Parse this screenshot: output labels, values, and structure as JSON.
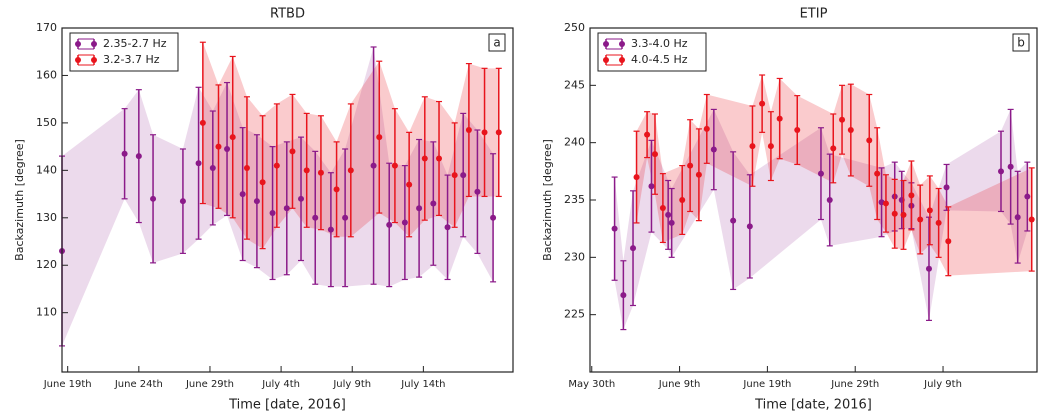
{
  "chart_data": [
    {
      "type": "errorbar",
      "title": "RTBD",
      "panel_label": "a",
      "x_label": "Time [date, 2016]",
      "y_label": "Backazimuth [degree]",
      "xlim": [
        18.6,
        50.3
      ],
      "ylim": [
        97.5,
        170
      ],
      "xticks": [
        {
          "value": 19,
          "label": "June 19th"
        },
        {
          "value": 24,
          "label": "June 24th"
        },
        {
          "value": 29,
          "label": "June 29th"
        },
        {
          "value": 34,
          "label": "July 4th"
        },
        {
          "value": 39,
          "label": "July 9th"
        },
        {
          "value": 44,
          "label": "July 14th"
        }
      ],
      "yticks": [
        110,
        120,
        130,
        140,
        150,
        160,
        170
      ],
      "legend": "upper left",
      "series": [
        {
          "name": "2.35-2.7 Hz",
          "color": "#8b1a89",
          "x": [
            18.6,
            23,
            24,
            25,
            27.1,
            28.2,
            29.2,
            30.2,
            31.3,
            32.3,
            33.4,
            34.4,
            35.4,
            36.4,
            37.5,
            38.5,
            40.5,
            41.6,
            42.7,
            43.7,
            44.7,
            45.7,
            46.8,
            47.8,
            48.9
          ],
          "values": [
            123,
            143.5,
            143,
            134,
            133.5,
            141.5,
            140.5,
            144.5,
            135,
            133.5,
            131,
            132,
            134,
            130,
            127.5,
            130,
            141,
            128.5,
            129,
            132,
            133,
            128,
            139,
            135.5,
            130
          ],
          "errors": [
            20,
            9.5,
            14,
            13.5,
            11,
            16,
            12,
            14,
            14,
            14,
            14,
            14,
            13,
            14,
            12,
            14.5,
            25,
            13,
            12,
            14.5,
            13,
            11,
            13,
            13,
            13.5
          ]
        },
        {
          "name": "3.2-3.7 Hz",
          "color": "#e8141c",
          "x": [
            28.5,
            29.6,
            30.6,
            31.6,
            32.7,
            33.7,
            34.8,
            35.8,
            36.8,
            37.9,
            38.9,
            40.9,
            42,
            43,
            44.1,
            45.1,
            46.2,
            47.2,
            48.3,
            49.3
          ],
          "values": [
            150,
            145,
            147,
            140.5,
            137.5,
            141,
            144,
            140,
            139.5,
            136,
            140,
            147,
            141,
            137,
            142.5,
            142.5,
            139,
            148.5,
            148,
            148
          ],
          "errors": [
            17,
            13,
            17,
            15,
            14,
            13,
            12,
            12,
            12,
            10,
            14,
            16,
            12,
            11,
            13,
            12,
            11,
            14,
            13.5,
            13.5
          ]
        }
      ]
    },
    {
      "type": "errorbar",
      "title": "ETIP",
      "panel_label": "b",
      "x_label": "Time [date, 2016]",
      "y_label": "Backazimuth [degree]",
      "xlim": [
        -0.2,
        50.7
      ],
      "ylim": [
        220,
        250
      ],
      "xticks": [
        {
          "value": 0,
          "label": "May 30th"
        },
        {
          "value": 10,
          "label": "June 9th"
        },
        {
          "value": 20,
          "label": "June 19th"
        },
        {
          "value": 30,
          "label": "June 29th"
        },
        {
          "value": 40,
          "label": "July 9th"
        }
      ],
      "yticks": [
        225,
        230,
        235,
        240,
        245,
        250
      ],
      "legend": "upper left",
      "series": [
        {
          "name": "3.3-4.0 Hz",
          "color": "#8b1a89",
          "x": [
            2.6,
            3.6,
            4.7,
            6.8,
            8.7,
            9.1,
            13.9,
            16.1,
            18,
            26.1,
            27.1,
            33,
            34.5,
            35.3,
            36.4,
            38.4,
            40.4,
            46.6,
            47.7,
            48.5,
            49.6
          ],
          "values": [
            232.5,
            226.7,
            230.8,
            236.2,
            233.7,
            233,
            239.4,
            233.2,
            232.7,
            237.3,
            235,
            234.8,
            235.3,
            235,
            234.5,
            229,
            236.1,
            237.5,
            237.9,
            233.5,
            235.3
          ],
          "errors": [
            4.5,
            3,
            5,
            4,
            3,
            3,
            3.5,
            6,
            4.5,
            4,
            4,
            3,
            3,
            2.5,
            2,
            4.5,
            2,
            3.5,
            5,
            4,
            3
          ]
        },
        {
          "name": "4.0-4.5 Hz",
          "color": "#e8141c",
          "x": [
            5.1,
            6.3,
            7.2,
            8.1,
            10.3,
            11.2,
            12.2,
            13.1,
            18.3,
            19.4,
            20.4,
            21.4,
            23.4,
            27.5,
            28.5,
            29.5,
            31.6,
            32.5,
            33.5,
            34.5,
            35.5,
            36.4,
            37.4,
            38.5,
            39.5,
            40.6,
            50.1
          ],
          "values": [
            237,
            240.7,
            239,
            234.3,
            235,
            238,
            237.2,
            241.2,
            239.7,
            243.4,
            239.7,
            242.1,
            241.1,
            239.5,
            242,
            241.1,
            240.2,
            237.3,
            234.7,
            233.8,
            233.7,
            235.4,
            233.3,
            234.1,
            233,
            231.4,
            233.3
          ],
          "errors": [
            4,
            2,
            3.5,
            3,
            3,
            4,
            4,
            3,
            3.5,
            2.5,
            3,
            3.5,
            3,
            3,
            3,
            4,
            4,
            4,
            2.5,
            3,
            3,
            3,
            3,
            3,
            3,
            3,
            4.5
          ]
        }
      ]
    }
  ]
}
